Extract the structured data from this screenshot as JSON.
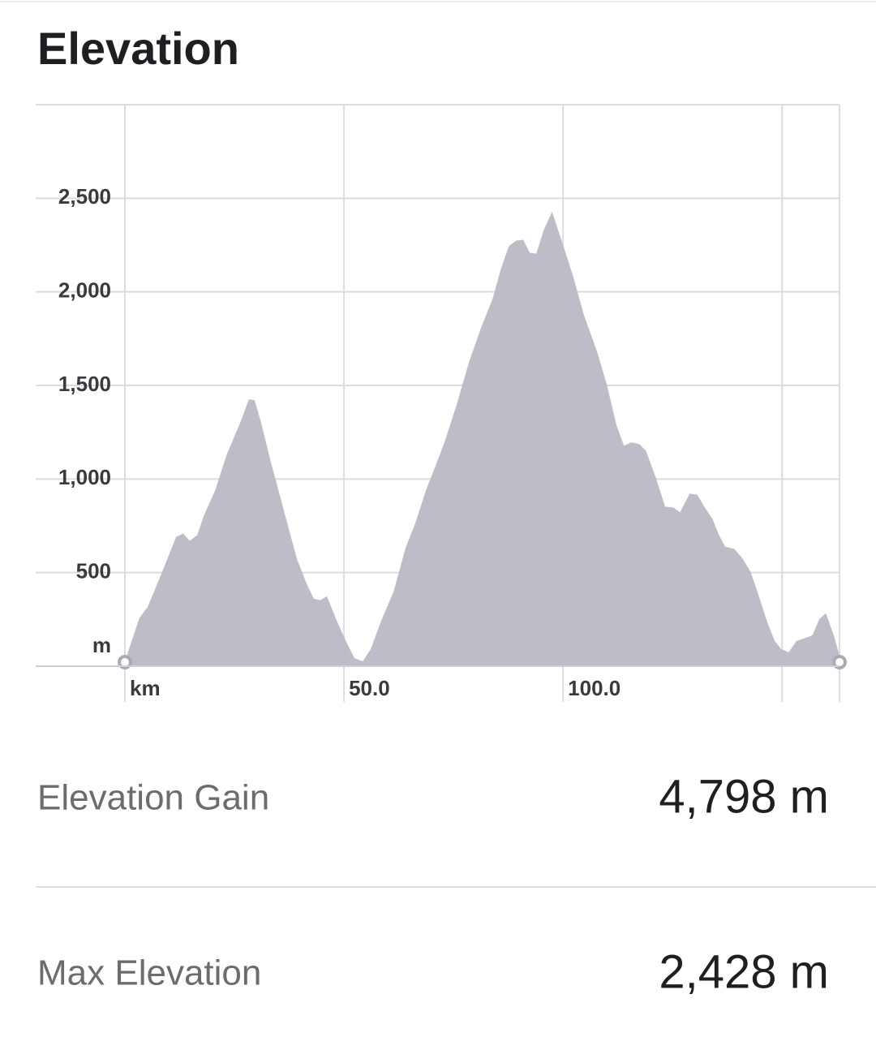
{
  "header": {
    "title": "Elevation"
  },
  "chart_data": {
    "type": "area",
    "color": "#b9b9c5",
    "grid": true,
    "x": [
      0,
      3.3,
      5.2,
      8.5,
      11.7,
      13.3,
      14.8,
      16.5,
      18.1,
      20.6,
      23.3,
      26.3,
      28.3,
      29.6,
      31.1,
      33.3,
      36.3,
      39.3,
      41.5,
      43.1,
      44.6,
      46.1,
      48.1,
      50.4,
      52.4,
      54.3,
      56.1,
      58.5,
      61.3,
      64.1,
      66.3,
      68.7,
      70.9,
      73.0,
      75.7,
      78.5,
      81.3,
      83.9,
      85.7,
      87.6,
      89.3,
      90.9,
      92.4,
      93.9,
      95.6,
      97.5,
      99.8,
      102.2,
      104.8,
      107.8,
      110.0,
      112.2,
      113.9,
      115.6,
      117.4,
      118.9,
      121.1,
      123.3,
      125.2,
      126.7,
      128.9,
      130.6,
      132.6,
      134.1,
      135.6,
      137.0,
      139.1,
      140.9,
      142.8,
      144.4,
      146.5,
      148.3,
      149.8,
      151.5,
      153.3,
      156.1,
      156.9,
      158.5,
      160.0,
      161.9,
      163.1
    ],
    "values": [
      26,
      257,
      317,
      504,
      691,
      709,
      670,
      700,
      809,
      939,
      1135,
      1300,
      1426,
      1422,
      1300,
      1091,
      830,
      570,
      439,
      361,
      352,
      374,
      257,
      135,
      43,
      26,
      91,
      243,
      396,
      635,
      765,
      939,
      1070,
      1200,
      1396,
      1622,
      1809,
      1961,
      2113,
      2243,
      2274,
      2278,
      2209,
      2204,
      2330,
      2428,
      2265,
      2091,
      1874,
      1678,
      1504,
      1287,
      1178,
      1196,
      1187,
      1152,
      1013,
      852,
      848,
      822,
      922,
      917,
      839,
      787,
      700,
      639,
      626,
      578,
      504,
      396,
      243,
      135,
      91,
      74,
      135,
      157,
      165,
      252,
      283,
      157,
      57
    ],
    "xlim": [
      0,
      163.1
    ],
    "ylim": [
      0,
      3000
    ],
    "xticks": [
      {
        "value": 0,
        "label": "km"
      },
      {
        "value": 50,
        "label": "50.0"
      },
      {
        "value": 100,
        "label": "100.0"
      },
      {
        "value": 150,
        "label": null
      }
    ],
    "yticks": [
      {
        "value": 0,
        "label": "m"
      },
      {
        "value": 500,
        "label": "500"
      },
      {
        "value": 1000,
        "label": "1,000"
      },
      {
        "value": 1500,
        "label": "1,500"
      },
      {
        "value": 2000,
        "label": "2,000"
      },
      {
        "value": 2500,
        "label": "2,500"
      }
    ]
  },
  "stats": [
    {
      "label": "Elevation Gain",
      "value": "4,798 m"
    },
    {
      "label": "Max Elevation",
      "value": "2,428 m"
    }
  ]
}
